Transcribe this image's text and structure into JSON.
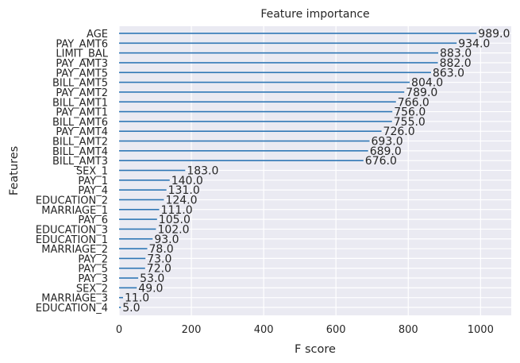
{
  "chart_data": {
    "type": "bar",
    "orientation": "horizontal",
    "title": "Feature importance",
    "xlabel": "F score",
    "ylabel": "Features",
    "xlim": [
      0,
      1085
    ],
    "xticks": [
      "0",
      "200",
      "400",
      "600",
      "800",
      "1000"
    ],
    "grid": true,
    "colors": {
      "background": "#eaeaf2",
      "bar": "#2e76b5",
      "grid": "#ffffff",
      "text": "#262626"
    },
    "categories": [
      "AGE",
      "PAY_AMT6",
      "LIMIT_BAL",
      "PAY_AMT3",
      "PAY_AMT5",
      "BILL_AMT5",
      "PAY_AMT2",
      "BILL_AMT1",
      "PAY_AMT1",
      "BILL_AMT6",
      "PAY_AMT4",
      "BILL_AMT2",
      "BILL_AMT4",
      "BILL_AMT3",
      "SEX_1",
      "PAY_1",
      "PAY_4",
      "EDUCATION_2",
      "MARRIAGE_1",
      "PAY_6",
      "EDUCATION_3",
      "EDUCATION_1",
      "MARRIAGE_2",
      "PAY_2",
      "PAY_5",
      "PAY_3",
      "SEX_2",
      "MARRIAGE_3",
      "EDUCATION_4"
    ],
    "values": [
      989,
      934,
      883,
      882,
      863,
      804,
      789,
      766,
      756,
      755,
      726,
      693,
      689,
      676,
      183,
      140,
      131,
      124,
      111,
      105,
      102,
      93,
      78,
      73,
      72,
      53,
      49,
      11,
      5
    ],
    "value_labels": [
      "989.0",
      "934.0",
      "883.0",
      "882.0",
      "863.0",
      "804.0",
      "789.0",
      "766.0",
      "756.0",
      "755.0",
      "726.0",
      "693.0",
      "689.0",
      "676.0",
      "183.0",
      "140.0",
      "131.0",
      "124.0",
      "111.0",
      "105.0",
      "102.0",
      "93.0",
      "78.0",
      "73.0",
      "72.0",
      "53.0",
      "49.0",
      "11.0",
      "5.0"
    ]
  }
}
